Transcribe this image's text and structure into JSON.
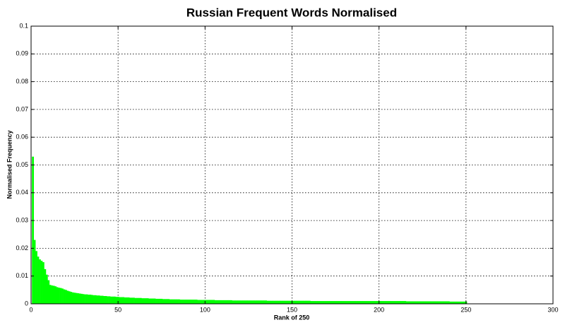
{
  "chart_data": {
    "type": "bar",
    "title": "Russian Frequent Words Normalised",
    "x_label": "Rank of 250",
    "y_label": "Normalised Frequency",
    "color": "#00ff00",
    "grid": true,
    "xlim": [
      0,
      300
    ],
    "xticks": [
      0,
      50,
      100,
      150,
      200,
      250,
      300
    ],
    "ylim": [
      0,
      0.1
    ],
    "yticks": [
      0,
      0.01,
      0.02,
      0.03,
      0.04,
      0.05,
      0.06,
      0.07,
      0.08,
      0.09,
      0.1
    ],
    "x": [
      1,
      2,
      3,
      4,
      5,
      6,
      7,
      8,
      9,
      10,
      11,
      12,
      13,
      14,
      15,
      16,
      17,
      18,
      19,
      20,
      21,
      22,
      23,
      24,
      25,
      26,
      27,
      28,
      29,
      30,
      31,
      32,
      33,
      34,
      35,
      36,
      37,
      38,
      39,
      40,
      41,
      42,
      43,
      44,
      45,
      46,
      47,
      48,
      49,
      50,
      51,
      52,
      53,
      54,
      55,
      56,
      57,
      58,
      59,
      60,
      61,
      62,
      63,
      64,
      65,
      66,
      67,
      68,
      69,
      70,
      71,
      72,
      73,
      74,
      75,
      76,
      77,
      78,
      79,
      80,
      81,
      82,
      83,
      84,
      85,
      86,
      87,
      88,
      89,
      90,
      91,
      92,
      93,
      94,
      95,
      96,
      97,
      98,
      99,
      100,
      101,
      102,
      103,
      104,
      105,
      106,
      107,
      108,
      109,
      110,
      111,
      112,
      113,
      114,
      115,
      116,
      117,
      118,
      119,
      120,
      121,
      122,
      123,
      124,
      125,
      126,
      127,
      128,
      129,
      130,
      131,
      132,
      133,
      134,
      135,
      136,
      137,
      138,
      139,
      140,
      141,
      142,
      143,
      144,
      145,
      146,
      147,
      148,
      149,
      150,
      151,
      152,
      153,
      154,
      155,
      156,
      157,
      158,
      159,
      160,
      161,
      162,
      163,
      164,
      165,
      166,
      167,
      168,
      169,
      170,
      171,
      172,
      173,
      174,
      175,
      176,
      177,
      178,
      179,
      180,
      181,
      182,
      183,
      184,
      185,
      186,
      187,
      188,
      189,
      190,
      191,
      192,
      193,
      194,
      195,
      196,
      197,
      198,
      199,
      200,
      201,
      202,
      203,
      204,
      205,
      206,
      207,
      208,
      209,
      210,
      211,
      212,
      213,
      214,
      215,
      216,
      217,
      218,
      219,
      220,
      221,
      222,
      223,
      224,
      225,
      226,
      227,
      228,
      229,
      230,
      231,
      232,
      233,
      234,
      235,
      236,
      237,
      238,
      239,
      240,
      241,
      242,
      243,
      244,
      245,
      246,
      247,
      248,
      249,
      250
    ],
    "values": [
      0.053,
      0.023,
      0.019,
      0.017,
      0.016,
      0.0155,
      0.015,
      0.0125,
      0.0105,
      0.0085,
      0.0068,
      0.0066,
      0.0065,
      0.0063,
      0.006,
      0.0058,
      0.0057,
      0.0055,
      0.0052,
      0.005,
      0.0047,
      0.0045,
      0.0043,
      0.0041,
      0.004,
      0.0039,
      0.0038,
      0.0037,
      0.0036,
      0.0035,
      0.0034,
      0.0034,
      0.0033,
      0.0033,
      0.0032,
      0.0031,
      0.0031,
      0.003,
      0.003,
      0.0029,
      0.0029,
      0.0028,
      0.0028,
      0.0027,
      0.0027,
      0.0026,
      0.0026,
      0.0026,
      0.0025,
      0.0025,
      0.0024,
      0.0024,
      0.0024,
      0.0023,
      0.0023,
      0.0023,
      0.0022,
      0.0022,
      0.0022,
      0.0021,
      0.0021,
      0.0021,
      0.0021,
      0.002,
      0.002,
      0.002,
      0.002,
      0.0019,
      0.0019,
      0.0019,
      0.0019,
      0.0018,
      0.0018,
      0.0018,
      0.0018,
      0.0017,
      0.0017,
      0.0017,
      0.0017,
      0.0016,
      0.0016,
      0.0016,
      0.0016,
      0.0016,
      0.0016,
      0.0015,
      0.0015,
      0.0015,
      0.0015,
      0.0015,
      0.0015,
      0.0015,
      0.0015,
      0.0015,
      0.0015,
      0.0014,
      0.0014,
      0.0014,
      0.0014,
      0.0014,
      0.0014,
      0.0014,
      0.0014,
      0.0014,
      0.0014,
      0.0013,
      0.0013,
      0.0013,
      0.0013,
      0.0013,
      0.0013,
      0.0013,
      0.0013,
      0.0013,
      0.0013,
      0.0012,
      0.0012,
      0.0012,
      0.0012,
      0.0012,
      0.0012,
      0.0012,
      0.0012,
      0.0012,
      0.0012,
      0.0012,
      0.0012,
      0.0012,
      0.0012,
      0.0012,
      0.0012,
      0.0012,
      0.0012,
      0.0012,
      0.0012,
      0.0011,
      0.0011,
      0.0011,
      0.0011,
      0.0011,
      0.0011,
      0.0011,
      0.0011,
      0.0011,
      0.0011,
      0.0011,
      0.0011,
      0.0011,
      0.0011,
      0.0011,
      0.0011,
      0.0011,
      0.0011,
      0.0011,
      0.0011,
      0.0011,
      0.0011,
      0.0011,
      0.0011,
      0.0011,
      0.001,
      0.001,
      0.001,
      0.001,
      0.001,
      0.001,
      0.001,
      0.001,
      0.001,
      0.001,
      0.001,
      0.001,
      0.001,
      0.001,
      0.001,
      0.001,
      0.001,
      0.001,
      0.001,
      0.001,
      0.001,
      0.001,
      0.001,
      0.001,
      0.001,
      0.001,
      0.001,
      0.001,
      0.001,
      0.001,
      0.001,
      0.001,
      0.001,
      0.001,
      0.001,
      0.001,
      0.001,
      0.001,
      0.001,
      0.001,
      0.001,
      0.001,
      0.001,
      0.001,
      0.001,
      0.001,
      0.001,
      0.001,
      0.001,
      0.001,
      0.001,
      0.001,
      0.001,
      0.001,
      0.001,
      0.0009,
      0.0009,
      0.0009,
      0.0009,
      0.0009,
      0.0009,
      0.0009,
      0.0009,
      0.0009,
      0.0009,
      0.0009,
      0.0009,
      0.0009,
      0.0009,
      0.0009,
      0.0009,
      0.0009,
      0.0009,
      0.0009,
      0.0009,
      0.0009,
      0.0009,
      0.0009,
      0.0009,
      0.0009,
      0.0008,
      0.0008,
      0.0008,
      0.0008,
      0.0008,
      0.0008,
      0.0008,
      0.0008,
      0.0008,
      0.0008
    ]
  }
}
